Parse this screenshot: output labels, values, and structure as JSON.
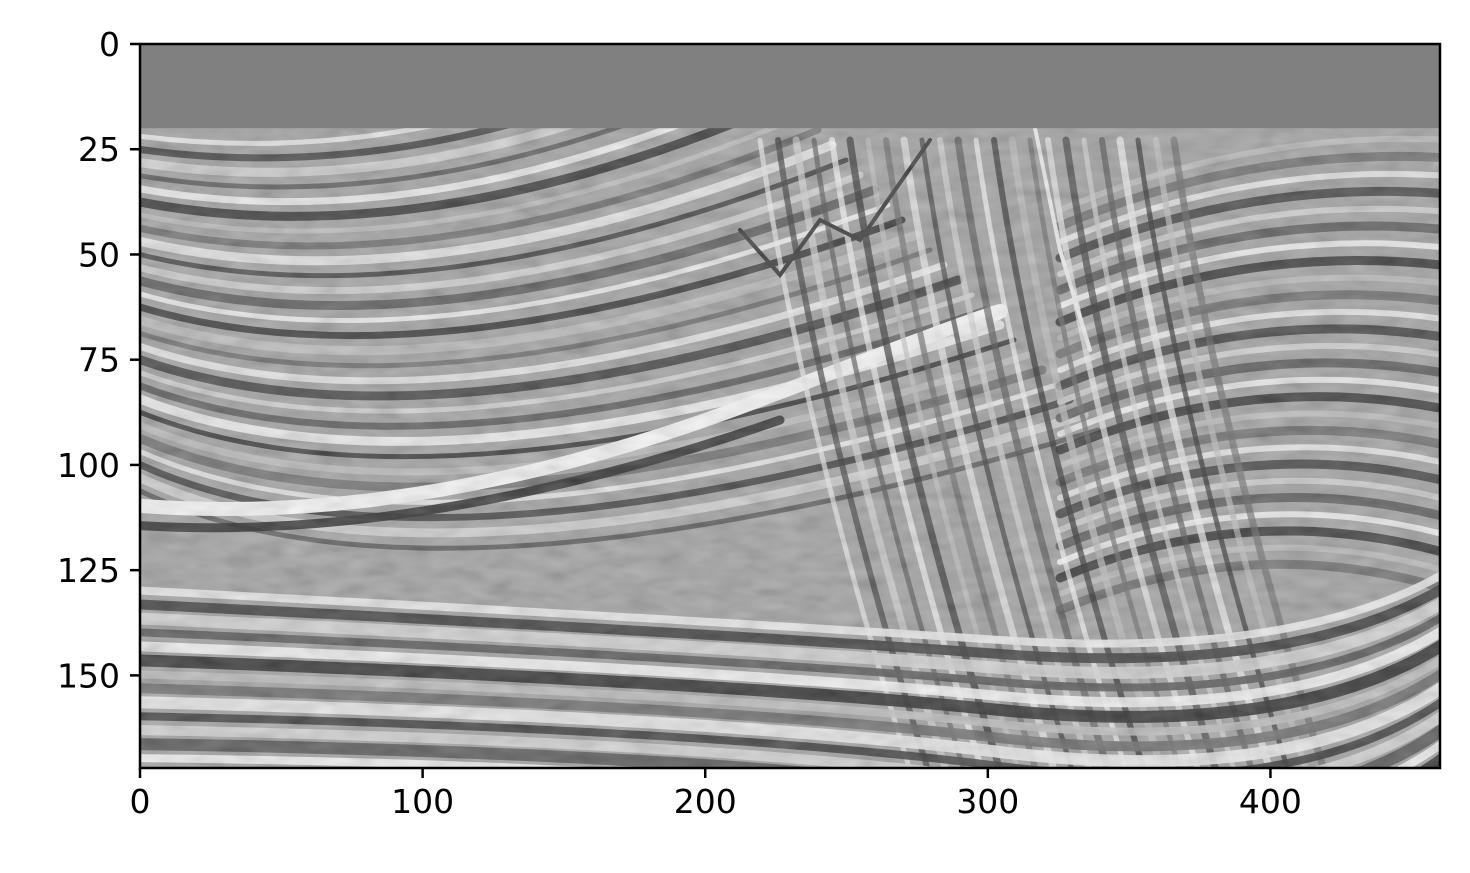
{
  "chart_data": {
    "type": "heatmap",
    "title": "",
    "xlabel": "",
    "ylabel": "",
    "xlim": [
      0,
      460
    ],
    "ylim": [
      172,
      0
    ],
    "x_ticks": [
      0,
      100,
      200,
      300,
      400
    ],
    "y_ticks": [
      0,
      25,
      50,
      75,
      100,
      125,
      150
    ],
    "x_tick_labels": [
      "0",
      "100",
      "200",
      "300",
      "400"
    ],
    "y_tick_labels": [
      "0",
      "25",
      "50",
      "75",
      "100",
      "125",
      "150"
    ],
    "colormap": "grayscale",
    "masked_band_rows": [
      0,
      20
    ],
    "masked_color": "#808080",
    "grid": false,
    "legend": "none"
  }
}
